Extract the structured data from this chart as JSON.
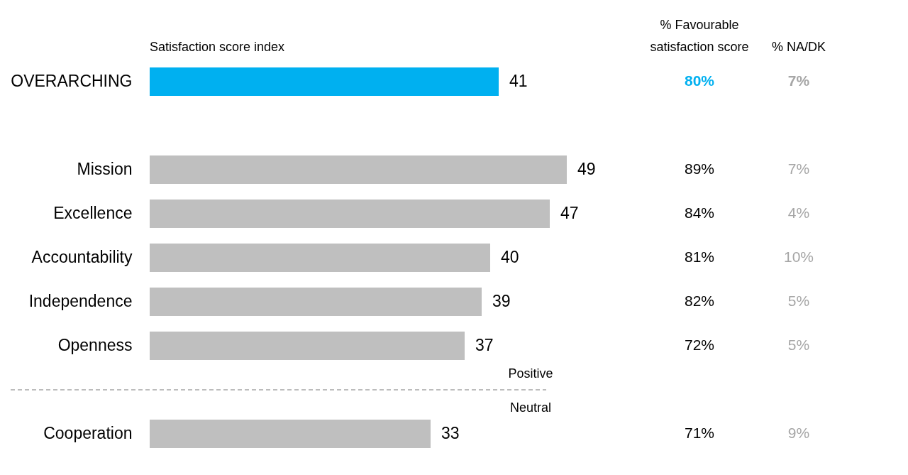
{
  "chart_data": {
    "type": "bar",
    "orientation": "horizontal",
    "data_labels": true,
    "grid": false,
    "xlabel": "Satisfaction score index",
    "categories": [
      "OVERARCHING",
      null,
      "Mission",
      "Excellence",
      "Accountability",
      "Independence",
      "Openness",
      null,
      "Cooperation"
    ],
    "values": [
      41,
      null,
      49,
      47,
      40,
      39,
      37,
      null,
      33
    ],
    "colors": [
      "#00b0f0",
      "#bfbfbf",
      "#bfbfbf",
      "#bfbfbf",
      "#bfbfbf",
      "#bfbfbf",
      "#bfbfbf",
      "#bfbfbf",
      "#bfbfbf"
    ],
    "ref_lines": [
      {
        "axis": "y",
        "label": "Positive",
        "line_style": "dashed",
        "color": "#a6a6a6"
      }
    ],
    "annotations": [
      "% Favourable\nsatisfaction score",
      "% NA/DK",
      "Neutral",
      "80%",
      "7%",
      "89%",
      "7%",
      "84%",
      "4%",
      "81%",
      "10%",
      "82%",
      "5%",
      "72%",
      "5%",
      "71%",
      "9%"
    ]
  }
}
